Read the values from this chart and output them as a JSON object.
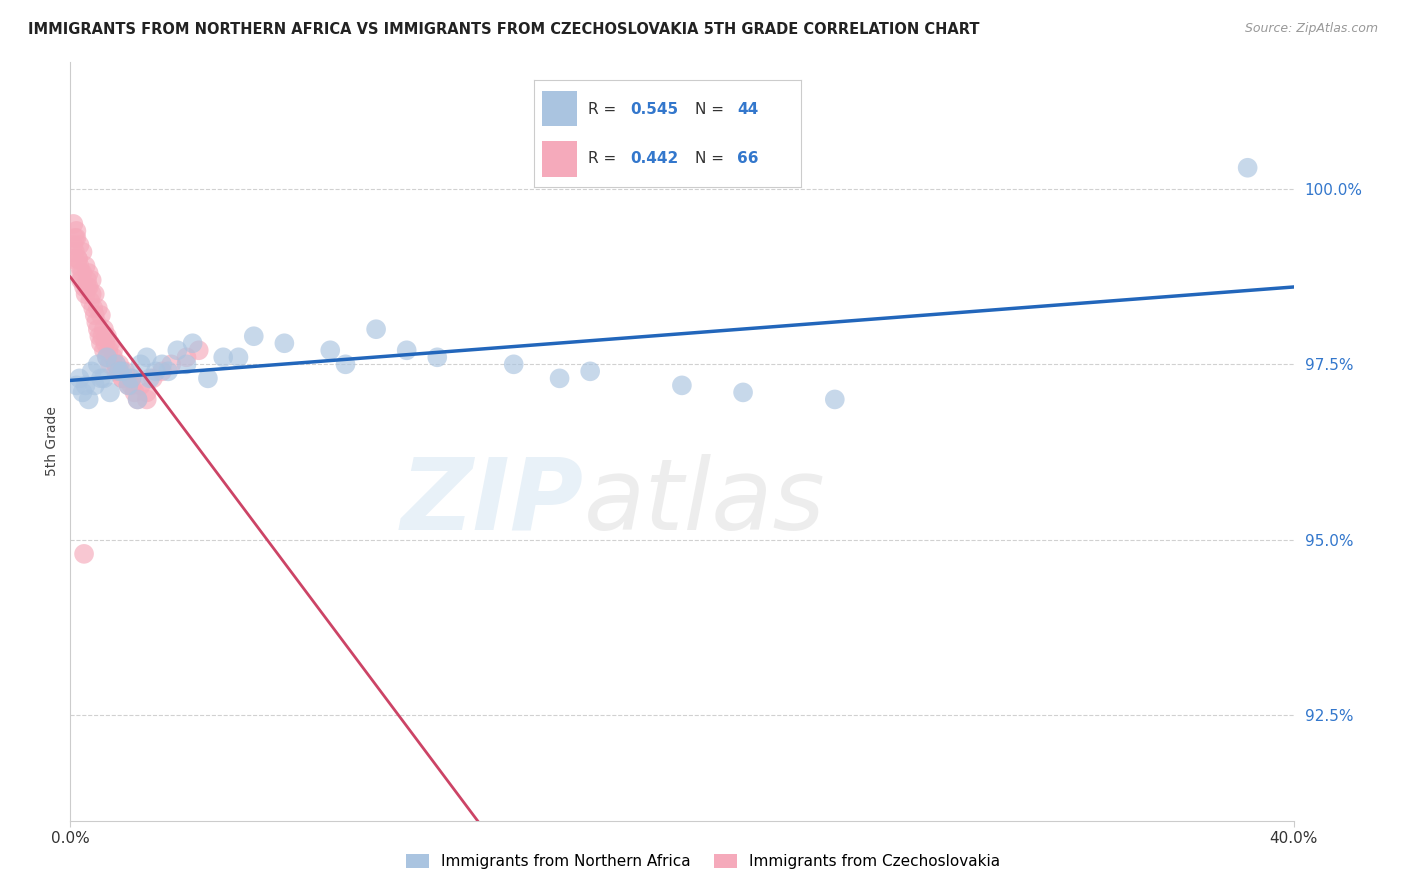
{
  "title": "IMMIGRANTS FROM NORTHERN AFRICA VS IMMIGRANTS FROM CZECHOSLOVAKIA 5TH GRADE CORRELATION CHART",
  "source": "Source: ZipAtlas.com",
  "ylabel": "5th Grade",
  "xlim": [
    0.0,
    40.0
  ],
  "ylim": [
    91.0,
    101.8
  ],
  "yticks": [
    92.5,
    95.0,
    97.5,
    100.0
  ],
  "ytick_labels": [
    "92.5%",
    "95.0%",
    "97.5%",
    "100.0%"
  ],
  "xticks": [
    0.0,
    40.0
  ],
  "xtick_labels": [
    "0.0%",
    "40.0%"
  ],
  "blue_color": "#aac4e0",
  "blue_line_color": "#2266bb",
  "pink_color": "#f5aabb",
  "pink_line_color": "#cc4466",
  "background_color": "#ffffff",
  "grid_color": "#cccccc",
  "blue_x": [
    0.3,
    0.5,
    0.7,
    0.9,
    1.0,
    1.2,
    1.5,
    1.7,
    2.0,
    2.3,
    2.5,
    2.8,
    3.0,
    3.5,
    4.0,
    5.0,
    6.0,
    7.0,
    8.5,
    10.0,
    12.0,
    14.5,
    17.0,
    20.0,
    0.4,
    0.6,
    0.8,
    1.1,
    1.3,
    1.6,
    1.9,
    2.2,
    2.6,
    3.2,
    3.8,
    4.5,
    5.5,
    9.0,
    11.0,
    16.0,
    22.0,
    25.0,
    38.5,
    0.2
  ],
  "blue_y": [
    97.3,
    97.2,
    97.4,
    97.5,
    97.3,
    97.6,
    97.5,
    97.4,
    97.3,
    97.5,
    97.6,
    97.4,
    97.5,
    97.7,
    97.8,
    97.6,
    97.9,
    97.8,
    97.7,
    98.0,
    97.6,
    97.5,
    97.4,
    97.2,
    97.1,
    97.0,
    97.2,
    97.3,
    97.1,
    97.4,
    97.2,
    97.0,
    97.3,
    97.4,
    97.5,
    97.3,
    97.6,
    97.5,
    97.7,
    97.3,
    97.1,
    97.0,
    100.3,
    97.2
  ],
  "pink_x": [
    0.05,
    0.1,
    0.15,
    0.2,
    0.25,
    0.3,
    0.35,
    0.4,
    0.45,
    0.5,
    0.55,
    0.6,
    0.65,
    0.7,
    0.75,
    0.8,
    0.85,
    0.9,
    0.95,
    1.0,
    1.05,
    1.1,
    1.15,
    1.2,
    1.25,
    1.3,
    1.4,
    1.5,
    1.6,
    1.7,
    1.8,
    1.9,
    2.0,
    2.1,
    2.2,
    2.3,
    2.5,
    2.7,
    3.0,
    3.3,
    3.8,
    4.2,
    0.1,
    0.2,
    0.3,
    0.4,
    0.5,
    0.6,
    0.7,
    0.8,
    0.9,
    1.0,
    1.1,
    1.2,
    1.3,
    1.4,
    1.5,
    1.6,
    1.7,
    0.25,
    0.35,
    0.55,
    2.0,
    0.15,
    2.5,
    0.45
  ],
  "pink_y": [
    99.0,
    99.2,
    99.1,
    99.3,
    99.0,
    98.9,
    98.7,
    98.8,
    98.6,
    98.5,
    98.7,
    98.6,
    98.4,
    98.5,
    98.3,
    98.2,
    98.1,
    98.0,
    97.9,
    97.8,
    97.9,
    97.7,
    97.8,
    97.6,
    97.7,
    97.5,
    97.6,
    97.4,
    97.5,
    97.3,
    97.4,
    97.2,
    97.3,
    97.1,
    97.0,
    97.2,
    97.1,
    97.3,
    97.4,
    97.5,
    97.6,
    97.7,
    99.5,
    99.4,
    99.2,
    99.1,
    98.9,
    98.8,
    98.7,
    98.5,
    98.3,
    98.2,
    98.0,
    97.9,
    97.8,
    97.7,
    97.5,
    97.4,
    97.3,
    99.0,
    98.8,
    98.6,
    97.2,
    99.3,
    97.0,
    94.8
  ]
}
